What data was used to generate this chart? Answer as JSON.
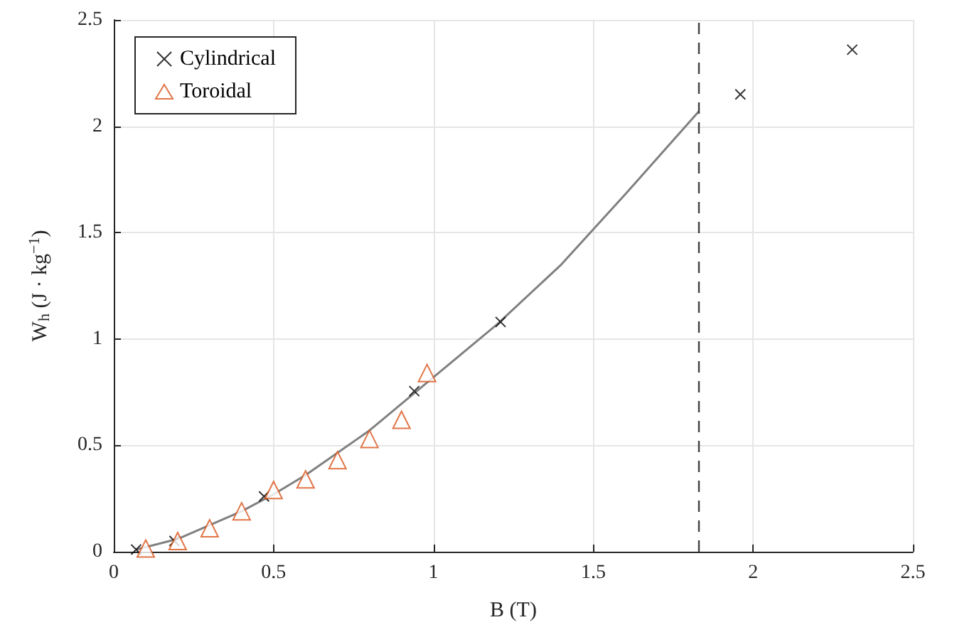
{
  "chart_data": {
    "type": "scatter",
    "xlabel": "B (T)",
    "ylabel": "W$_{h}$ (J · kg$^{−1}$)",
    "xlim": [
      0,
      2.5
    ],
    "xticks": [
      0,
      0.5,
      1,
      1.5,
      2,
      2.5
    ],
    "ylim": [
      0,
      2.5
    ],
    "yticks": [
      0,
      0.5,
      1,
      1.5,
      2,
      2.5
    ],
    "grid": true,
    "legend": "top left",
    "series": [
      {
        "name": "Cylindrical",
        "marker": "cross",
        "color": "#000000",
        "x": [
          0.07,
          0.19,
          0.47,
          0.94,
          1.21,
          1.96,
          2.31
        ],
        "values": [
          0.01,
          0.05,
          0.26,
          0.755,
          1.08,
          2.15,
          2.36
        ]
      },
      {
        "name": "Toroidal",
        "marker": "triangle",
        "color": "#d95319",
        "x": [
          0.1,
          0.2,
          0.3,
          0.4,
          0.5,
          0.6,
          0.7,
          0.8,
          0.9,
          0.98
        ],
        "values": [
          0.015,
          0.05,
          0.11,
          0.19,
          0.29,
          0.34,
          0.43,
          0.53,
          0.62,
          0.84
        ]
      },
      {
        "type": "line",
        "marker": "none",
        "color": "#808080",
        "x": [
          0.07,
          0.2,
          0.4,
          0.5,
          0.6,
          0.8,
          1.0,
          1.2,
          1.4,
          1.6,
          1.83
        ],
        "values": [
          0.01,
          0.06,
          0.19,
          0.27,
          0.36,
          0.57,
          0.82,
          1.07,
          1.35,
          1.68,
          2.07
        ]
      }
    ],
    "ref_lines": [
      {
        "axis": "x",
        "value": 1.83,
        "color": "#404040",
        "line_style": "dashed"
      }
    ]
  }
}
